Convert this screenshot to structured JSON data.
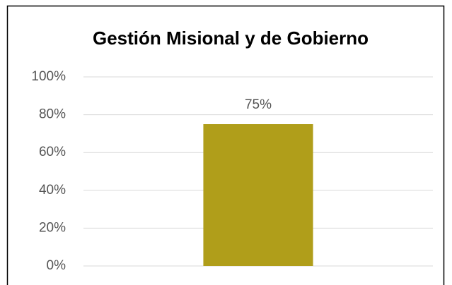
{
  "chart_data": {
    "type": "bar",
    "title": "Gestión Misional y de Gobierno",
    "categories": [
      null
    ],
    "values": [
      75
    ],
    "value_labels": [
      "75%"
    ],
    "color": "#b09e1a",
    "ylim": [
      0,
      100
    ],
    "yticks": [
      {
        "value": 0,
        "label": "0%"
      },
      {
        "value": 20,
        "label": "20%"
      },
      {
        "value": 40,
        "label": "40%"
      },
      {
        "value": 60,
        "label": "60%"
      },
      {
        "value": 80,
        "label": "80%"
      },
      {
        "value": 100,
        "label": "100%"
      }
    ],
    "grid": true
  }
}
